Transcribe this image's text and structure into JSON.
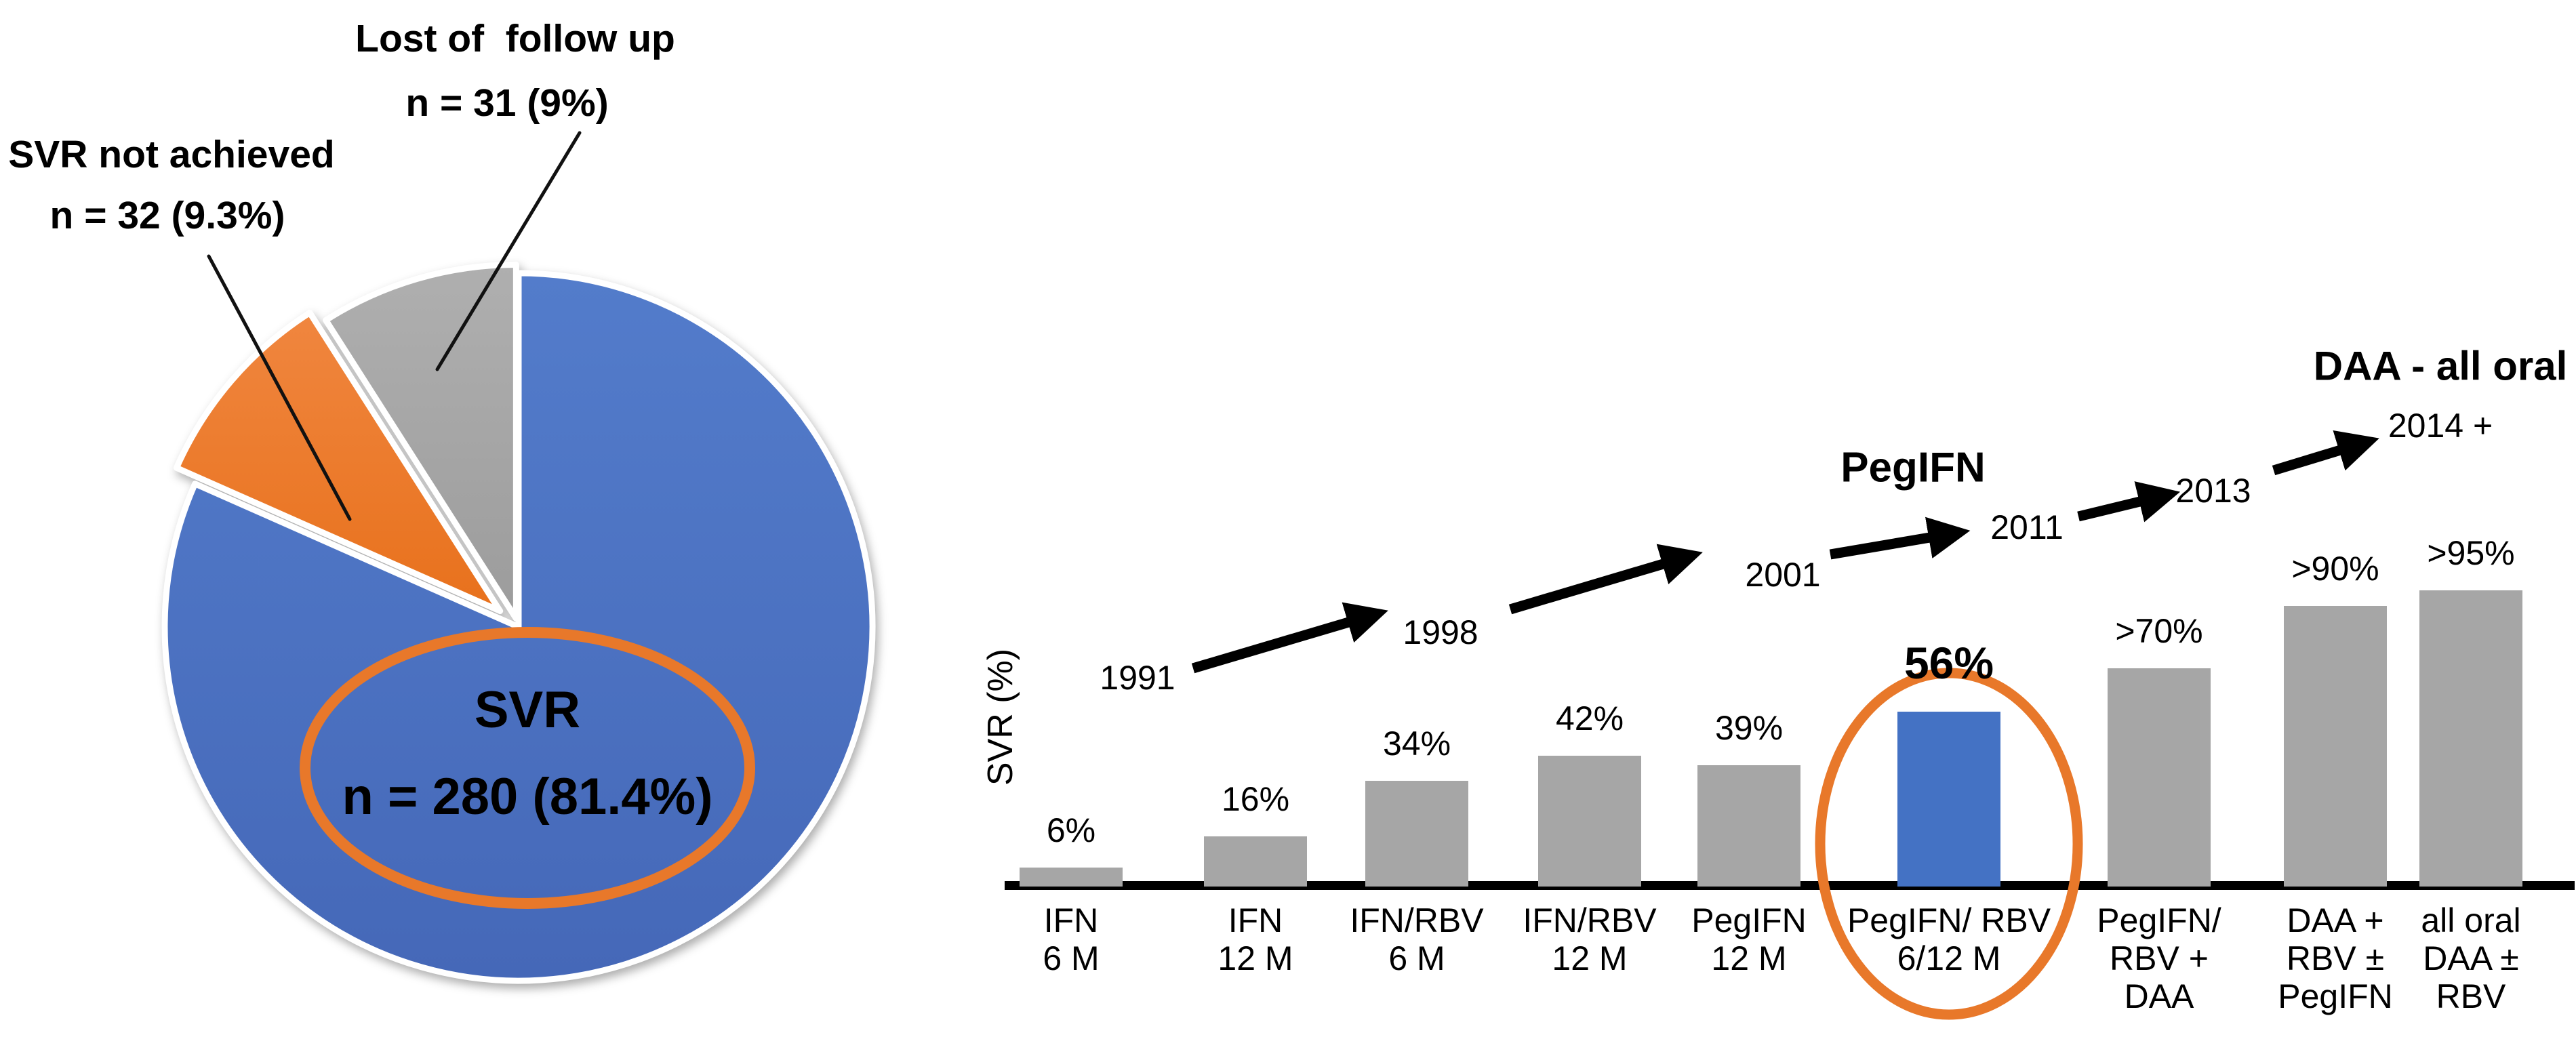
{
  "page": {
    "background": "#ffffff"
  },
  "colors": {
    "pie_blue": "#4472C4",
    "pie_orange": "#ED7D31",
    "pie_gray": "#A6A6A6",
    "bar_gray": "#A6A6A6",
    "bar_blue": "#4472C4",
    "annotation_orange": "#E8782A",
    "axis_black": "#000000",
    "text_black": "#000000"
  },
  "chart_data": [
    {
      "type": "pie",
      "slices": [
        {
          "label": "SVR",
          "n": 280,
          "pct_label": "81.4%",
          "value": 81.4,
          "color": "#4472C4"
        },
        {
          "label": "SVR not achieved",
          "n": 32,
          "pct_label": "9.3%",
          "value": 9.3,
          "color": "#ED7D31",
          "exploded": true
        },
        {
          "label": "Lost of follow up",
          "n": 31,
          "pct_label": "9%",
          "value": 9.0,
          "color": "#A6A6A6"
        }
      ],
      "annotations": {
        "inner_line1": "SVR",
        "inner_line2": "n = 280 (81.4%)",
        "callout1_line1": "SVR not achieved",
        "callout1_line2": "n = 32 (9.3%)",
        "callout2_line1": "Lost of  follow up",
        "callout2_line2": "n = 31 (9%)"
      },
      "legend": "none"
    },
    {
      "type": "bar",
      "title": "",
      "xlabel": "",
      "ylabel": "SVR (%)",
      "categories": [
        [
          "IFN",
          "6 M"
        ],
        [
          "IFN",
          "12 M"
        ],
        [
          "IFN/RBV",
          "6 M"
        ],
        [
          "IFN/RBV",
          "12 M"
        ],
        [
          "PegIFN",
          "12 M"
        ],
        [
          "PegIFN/ RBV",
          "6/12 M"
        ],
        [
          "PegIFN/",
          "RBV +",
          "DAA"
        ],
        [
          "DAA +",
          "RBV ±",
          "PegIFN"
        ],
        [
          "all oral",
          "DAA ±",
          "RBV"
        ]
      ],
      "values": [
        6,
        16,
        34,
        42,
        39,
        56,
        70,
        90,
        95
      ],
      "value_labels": [
        "6%",
        "16%",
        "34%",
        "42%",
        "39%",
        "56%",
        ">70%",
        ">90%",
        ">95%"
      ],
      "highlight_index": 5,
      "circled_category_index": 5,
      "timeline_years": [
        "1991",
        "1998",
        "2001",
        "2011",
        "2013",
        "2014 +"
      ],
      "era_labels": [
        "PegIFN",
        "DAA - all oral"
      ],
      "ylim": [
        0,
        100
      ],
      "grid": "off",
      "legend": "none"
    }
  ]
}
